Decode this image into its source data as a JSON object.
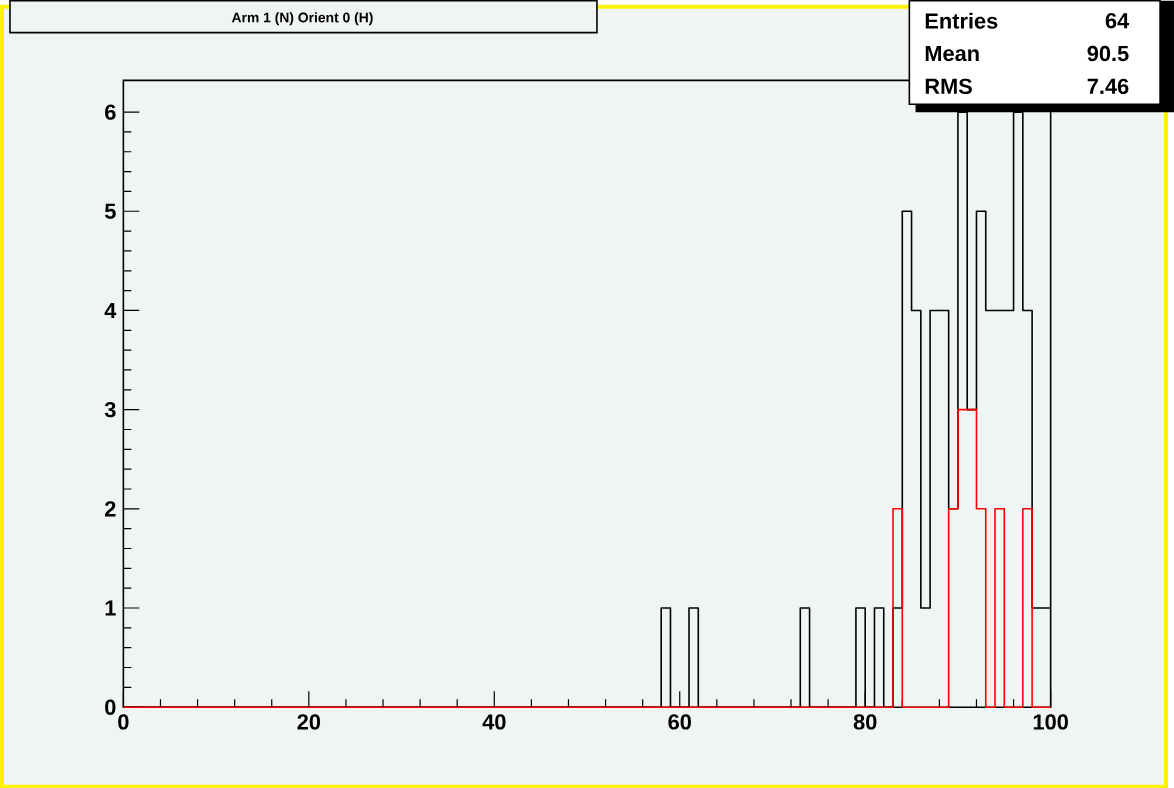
{
  "chart_data": {
    "type": "histogram",
    "title": "Arm 1 (N) Orient 0 (H)",
    "bins": [
      0,
      1,
      2,
      3,
      4,
      5,
      6,
      7,
      8,
      9,
      10,
      11,
      12,
      13,
      14,
      15,
      16,
      17,
      18,
      19,
      20,
      21,
      22,
      23,
      24,
      25,
      26,
      27,
      28,
      29,
      30,
      31,
      32,
      33,
      34,
      35,
      36,
      37,
      38,
      39,
      40,
      41,
      42,
      43,
      44,
      45,
      46,
      47,
      48,
      49,
      50,
      51,
      52,
      53,
      54,
      55,
      56,
      57,
      58,
      59,
      60,
      61,
      62,
      63,
      64,
      65,
      66,
      67,
      68,
      69,
      70,
      71,
      72,
      73,
      74,
      75,
      76,
      77,
      78,
      79,
      80,
      81,
      82,
      83,
      84,
      85,
      86,
      87,
      88,
      89,
      90,
      91,
      92,
      93,
      94,
      95,
      96,
      97,
      98,
      99,
      100
    ],
    "series": [
      {
        "color": "#000000",
        "values": [
          0,
          0,
          0,
          0,
          0,
          0,
          0,
          0,
          0,
          0,
          0,
          0,
          0,
          0,
          0,
          0,
          0,
          0,
          0,
          0,
          0,
          0,
          0,
          0,
          0,
          0,
          0,
          0,
          0,
          0,
          0,
          0,
          0,
          0,
          0,
          0,
          0,
          0,
          0,
          0,
          0,
          0,
          0,
          0,
          0,
          0,
          0,
          0,
          0,
          0,
          0,
          0,
          0,
          0,
          0,
          0,
          0,
          0,
          1,
          0,
          0,
          1,
          0,
          0,
          0,
          0,
          0,
          0,
          0,
          0,
          0,
          0,
          0,
          1,
          0,
          0,
          0,
          0,
          0,
          1,
          0,
          1,
          0,
          1,
          5,
          4,
          1,
          4,
          4,
          2,
          6,
          3,
          5,
          4,
          4,
          4,
          6,
          4,
          1,
          1
        ]
      },
      {
        "color": "#ff0000",
        "values": [
          0,
          0,
          0,
          0,
          0,
          0,
          0,
          0,
          0,
          0,
          0,
          0,
          0,
          0,
          0,
          0,
          0,
          0,
          0,
          0,
          0,
          0,
          0,
          0,
          0,
          0,
          0,
          0,
          0,
          0,
          0,
          0,
          0,
          0,
          0,
          0,
          0,
          0,
          0,
          0,
          0,
          0,
          0,
          0,
          0,
          0,
          0,
          0,
          0,
          0,
          0,
          0,
          0,
          0,
          0,
          0,
          0,
          0,
          0,
          0,
          0,
          0,
          0,
          0,
          0,
          0,
          0,
          0,
          0,
          0,
          0,
          0,
          0,
          0,
          0,
          0,
          0,
          0,
          0,
          0,
          0,
          0,
          0,
          2,
          0,
          0,
          0,
          0,
          0,
          2,
          3,
          3,
          2,
          0,
          2,
          0,
          0,
          2,
          0,
          0
        ]
      }
    ],
    "xlim": [
      0,
      100
    ],
    "ylim": [
      0,
      6.32
    ],
    "xticks": [
      0,
      20,
      40,
      60,
      80,
      100
    ],
    "yticks": [
      0,
      1,
      2,
      3,
      4,
      5,
      6
    ],
    "annotations": [
      "Entries",
      "64",
      "Mean",
      "90.5",
      "RMS",
      "7.46"
    ]
  }
}
